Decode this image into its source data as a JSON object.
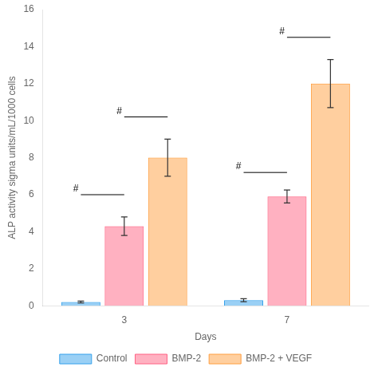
{
  "chart_data": {
    "type": "bar",
    "categories": [
      "3",
      "7"
    ],
    "series": [
      {
        "name": "Control",
        "values": [
          0.2,
          0.3
        ],
        "errors": [
          0.05,
          0.08
        ]
      },
      {
        "name": "BMP-2",
        "values": [
          4.3,
          5.9
        ],
        "errors": [
          0.5,
          0.35
        ]
      },
      {
        "name": "BMP-2 + VEGF",
        "values": [
          8.0,
          12.0
        ],
        "errors": [
          1.0,
          1.3
        ]
      }
    ],
    "xlabel": "Days",
    "ylabel": "ALP activity sigma units/mL/1000 cells",
    "ylim": [
      0,
      16
    ],
    "yticks": [
      0,
      2,
      4,
      6,
      8,
      10,
      12,
      14,
      16
    ],
    "grid": false,
    "legend": "bottom",
    "annotations": [
      {
        "text": "#",
        "category": "3",
        "from": "Control",
        "to": "BMP-2",
        "y": 6.0
      },
      {
        "text": "#",
        "category": "3",
        "from": "BMP-2",
        "to": "BMP-2 + VEGF",
        "y": 10.2
      },
      {
        "text": "#",
        "category": "7",
        "from": "Control",
        "to": "BMP-2",
        "y": 7.2
      },
      {
        "text": "#",
        "category": "7",
        "from": "BMP-2",
        "to": "BMP-2 + VEGF",
        "y": 14.5
      }
    ]
  }
}
